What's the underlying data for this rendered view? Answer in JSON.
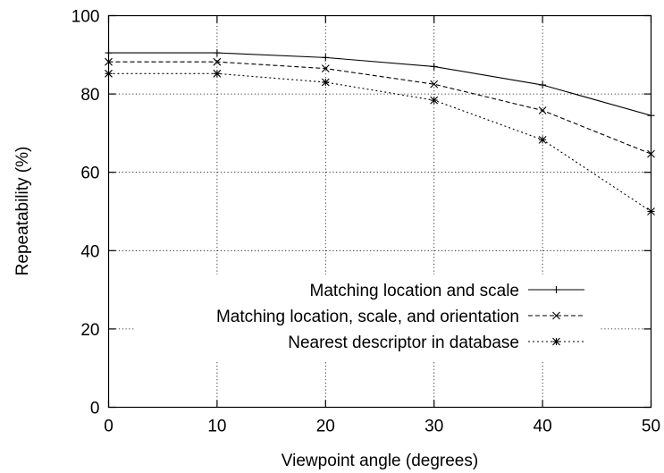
{
  "chart_data": {
    "type": "line",
    "title": "",
    "xlabel": "Viewpoint angle (degrees)",
    "ylabel": "Repeatability (%)",
    "xlim": [
      0,
      50
    ],
    "ylim": [
      0,
      100
    ],
    "x_ticks": [
      "0",
      "10",
      "20",
      "30",
      "40",
      "50"
    ],
    "y_ticks": [
      "0",
      "20",
      "40",
      "60",
      "80",
      "100"
    ],
    "grid": true,
    "legend_position": "bottom-right",
    "x": [
      0,
      10,
      20,
      30,
      40,
      50
    ],
    "series": [
      {
        "name": "Matching location and scale",
        "values": [
          90.5,
          90.5,
          89.3,
          87.0,
          82.3,
          74.5
        ],
        "marker": "plus",
        "dash": "solid"
      },
      {
        "name": "Matching location, scale, and orientation",
        "values": [
          88.2,
          88.2,
          86.5,
          82.5,
          75.8,
          64.7
        ],
        "marker": "cross",
        "dash": "dashed"
      },
      {
        "name": "Nearest descriptor in database",
        "values": [
          85.2,
          85.2,
          83.0,
          78.4,
          68.3,
          50.0
        ],
        "marker": "star",
        "dash": "dotted"
      }
    ]
  }
}
